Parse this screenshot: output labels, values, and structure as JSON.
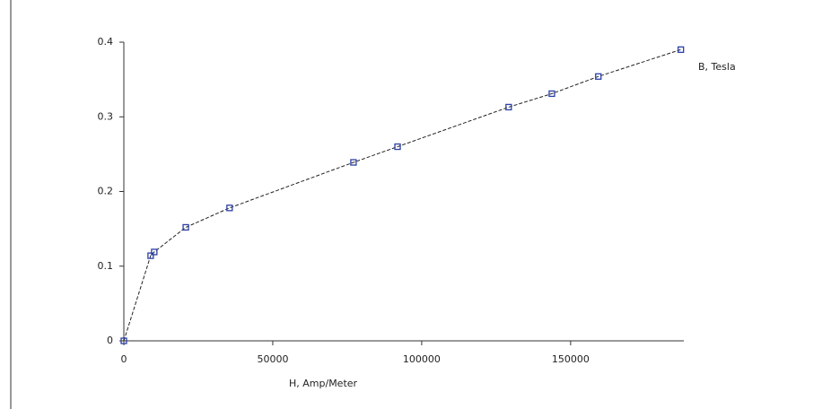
{
  "chart_data": {
    "type": "line",
    "x_label": "H, Amp/Meter",
    "x": [
      0,
      9000,
      10200,
      20800,
      35500,
      77100,
      91900,
      129200,
      143700,
      159300,
      187000
    ],
    "series": [
      {
        "name": "B, Tesla",
        "color": "#2b3fa6",
        "values": [
          0,
          0.114,
          0.119,
          0.152,
          0.178,
          0.239,
          0.26,
          0.313,
          0.331,
          0.354,
          0.39
        ]
      }
    ],
    "xlim": [
      0,
      188000
    ],
    "ylim": [
      0,
      0.4
    ],
    "xticks": [
      0,
      50000,
      100000,
      150000
    ],
    "yticks": [
      0,
      0.1,
      0.2,
      0.3,
      0.4
    ]
  }
}
